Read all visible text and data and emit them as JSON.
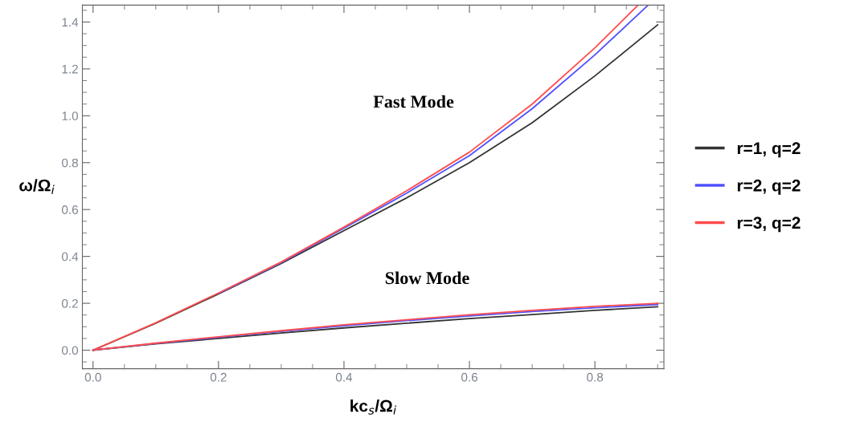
{
  "chart_data": {
    "type": "line",
    "xlabel": "kc$_{s}$/Ω$_{i}$",
    "ylabel": "ω/Ω$_{i}$",
    "xlim": [
      -0.017,
      0.91
    ],
    "ylim": [
      -0.079,
      1.472
    ],
    "xticks": [
      {
        "value": 0,
        "label": "0.0"
      },
      0.2,
      0.4,
      0.6,
      0.8
    ],
    "yticks": [
      {
        "value": 0,
        "label": "0.0"
      },
      0.2,
      0.4,
      0.6,
      0.8,
      {
        "value": 1,
        "label": "1.0"
      },
      1.2,
      1.4
    ],
    "grid": false,
    "legend": "right",
    "marker": "none",
    "line_style": "solid",
    "annotations": [
      "Fast Mode",
      "Slow Mode"
    ],
    "series": [
      {
        "name": "r=1, q=2",
        "color": "#333333",
        "x": [
          0,
          0.1,
          0.2,
          0.3,
          0.4,
          0.5,
          0.6,
          0.7,
          0.8,
          0.9
        ],
        "values": [
          0,
          0.115,
          0.24,
          0.37,
          0.51,
          0.65,
          0.8,
          0.97,
          1.17,
          1.388
        ]
      },
      {
        "name": "r=2, q=2",
        "color": "#5050ff",
        "x": [
          0.2,
          0.3,
          0.4,
          0.5,
          0.6,
          0.7,
          0.8,
          0.884
        ],
        "values": [
          0.242,
          0.373,
          0.52,
          0.67,
          0.83,
          1.03,
          1.26,
          1.47
        ]
      },
      {
        "name": "r=3, q=2",
        "color": "#ff4d4d",
        "x": [
          0,
          0.1,
          0.2,
          0.3,
          0.4,
          0.5,
          0.6,
          0.7,
          0.8,
          0.868
        ],
        "values": [
          0,
          0.117,
          0.244,
          0.376,
          0.525,
          0.68,
          0.845,
          1.05,
          1.29,
          1.47
        ]
      },
      {
        "color": "#333333",
        "x": [
          0,
          0.1,
          0.2,
          0.3,
          0.4,
          0.5,
          0.6,
          0.7,
          0.8,
          0.9
        ],
        "values": [
          0,
          0.027,
          0.05,
          0.073,
          0.095,
          0.115,
          0.135,
          0.152,
          0.17,
          0.185
        ]
      },
      {
        "color": "#5050ff",
        "x": [
          0,
          0.1,
          0.2,
          0.3,
          0.4,
          0.5,
          0.6,
          0.7,
          0.8,
          0.9
        ],
        "values": [
          0,
          0.029,
          0.055,
          0.08,
          0.104,
          0.126,
          0.146,
          0.165,
          0.181,
          0.195
        ]
      },
      {
        "color": "#ff4d4d",
        "x": [
          0,
          0.1,
          0.2,
          0.3,
          0.4,
          0.5,
          0.6,
          0.7,
          0.8,
          0.9
        ],
        "values": [
          0,
          0.03,
          0.057,
          0.083,
          0.108,
          0.13,
          0.151,
          0.17,
          0.187,
          0.2
        ]
      }
    ]
  }
}
